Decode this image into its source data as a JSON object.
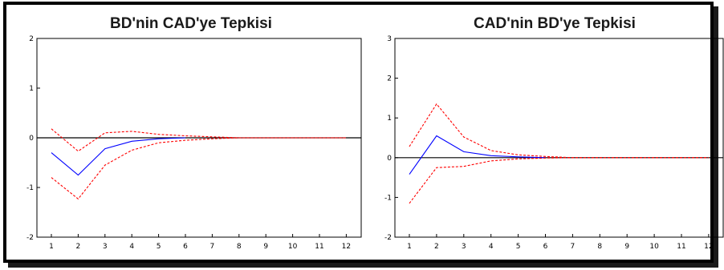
{
  "chart_data": [
    {
      "type": "line",
      "title": "BD'nin CAD'ye Tepkisi",
      "x": [
        1,
        2,
        3,
        4,
        5,
        6,
        7,
        8,
        9,
        10,
        11,
        12
      ],
      "xticks": [
        "1",
        "2",
        "3",
        "4",
        "5",
        "6",
        "7",
        "8",
        "9",
        "10",
        "11",
        "12"
      ],
      "yticks": [
        "-2",
        "-1",
        "0",
        "1",
        "2"
      ],
      "ylim": [
        -2,
        2
      ],
      "zero_line": true,
      "series": [
        {
          "role": "response",
          "color": "#0000ff",
          "style": "solid",
          "values": [
            -0.3,
            -0.75,
            -0.22,
            -0.07,
            -0.02,
            0.0,
            null,
            null,
            null,
            null,
            null,
            null
          ]
        },
        {
          "role": "upper",
          "color": "#ff0000",
          "style": "dashed",
          "values": [
            0.18,
            -0.27,
            0.1,
            0.13,
            0.07,
            0.04,
            0.02,
            0.0,
            0.0,
            0.0,
            0.0,
            0.0
          ]
        },
        {
          "role": "lower",
          "color": "#ff0000",
          "style": "dashed",
          "values": [
            -0.8,
            -1.23,
            -0.55,
            -0.25,
            -0.1,
            -0.05,
            -0.02,
            0.0,
            0.0,
            0.0,
            0.0,
            0.0
          ]
        }
      ]
    },
    {
      "type": "line",
      "title": "CAD'nin BD'ye Tepkisi",
      "x": [
        1,
        2,
        3,
        4,
        5,
        6,
        7,
        8,
        9,
        10,
        11,
        12
      ],
      "xticks": [
        "1",
        "2",
        "3",
        "4",
        "5",
        "6",
        "7",
        "8",
        "9",
        "10",
        "11",
        "12"
      ],
      "yticks": [
        "-2",
        "-1",
        "0",
        "1",
        "2",
        "3"
      ],
      "ylim": [
        -2,
        3
      ],
      "zero_line": true,
      "series": [
        {
          "role": "response",
          "color": "#0000ff",
          "style": "solid",
          "values": [
            -0.42,
            0.55,
            0.15,
            0.05,
            0.02,
            0.0,
            null,
            null,
            null,
            null,
            null,
            null
          ]
        },
        {
          "role": "upper",
          "color": "#ff0000",
          "style": "dashed",
          "values": [
            0.28,
            1.35,
            0.52,
            0.18,
            0.07,
            0.03,
            0.0,
            0.0,
            0.0,
            0.0,
            0.0,
            0.0
          ]
        },
        {
          "role": "lower",
          "color": "#ff0000",
          "style": "dashed",
          "values": [
            -1.15,
            -0.25,
            -0.22,
            -0.08,
            -0.03,
            -0.01,
            0.0,
            0.0,
            0.0,
            0.0,
            0.0,
            0.0
          ]
        }
      ]
    }
  ]
}
